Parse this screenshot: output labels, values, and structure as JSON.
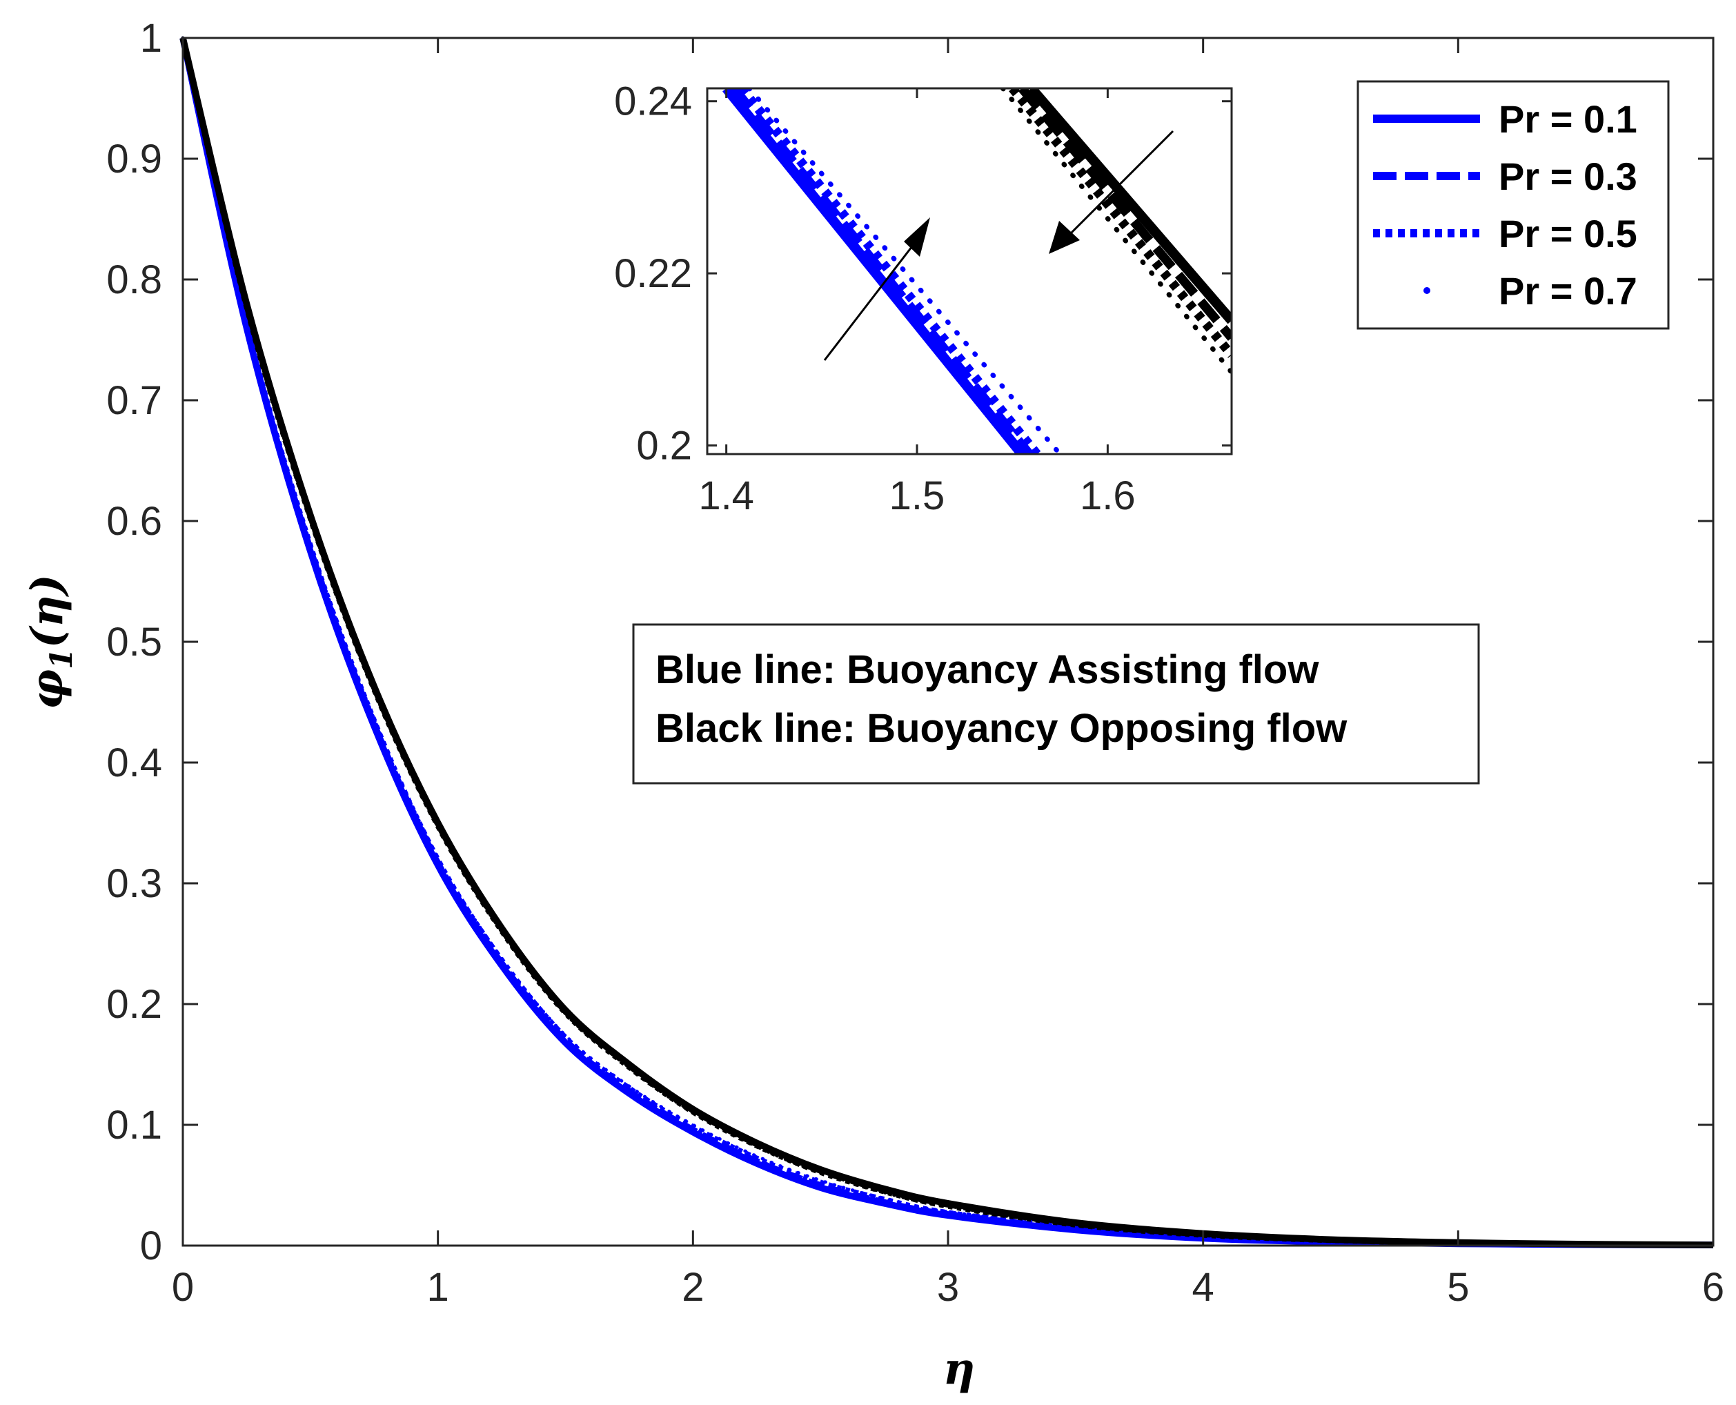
{
  "chart_data": {
    "type": "line",
    "title": "",
    "xlabel": "η",
    "ylabel": "φ1(η)",
    "ylabel_main": "φ",
    "ylabel_sub": "1",
    "ylabel_arg": "(η)",
    "xlim": [
      0,
      6
    ],
    "ylim": [
      0,
      1
    ],
    "xticks": [
      "0",
      "1",
      "2",
      "3",
      "4",
      "5",
      "6"
    ],
    "yticks": [
      "0",
      "0.1",
      "0.2",
      "0.3",
      "0.4",
      "0.5",
      "0.6",
      "0.7",
      "0.8",
      "0.9",
      "1"
    ],
    "grid": false,
    "legend_position": "top-right",
    "legend": [
      {
        "label": "Pr = 0.1",
        "style": "solid"
      },
      {
        "label": "Pr = 0.3",
        "style": "dashed"
      },
      {
        "label": "Pr = 0.5",
        "style": "dotted"
      },
      {
        "label": "Pr = 0.7",
        "style": "points"
      }
    ],
    "annotation": {
      "line1": "Blue line: Buoyancy Assisting flow",
      "line2": "Black line: Buoyancy Opposing flow"
    },
    "colors": {
      "assisting": "#0000ff",
      "opposing": "#000000"
    },
    "x": [
      0,
      0.25,
      0.5,
      0.75,
      1,
      1.25,
      1.5,
      1.75,
      2,
      2.25,
      2.5,
      2.75,
      3,
      3.5,
      4,
      4.5,
      5,
      5.5,
      6
    ],
    "series": [
      {
        "flow": "assisting",
        "style": "solid",
        "values": [
          1,
          0.76,
          0.575,
          0.43,
          0.315,
          0.232,
          0.168,
          0.126,
          0.094,
          0.068,
          0.048,
          0.035,
          0.025,
          0.013,
          0.006,
          0.003,
          0.0015,
          0.0008,
          0.0005
        ]
      },
      {
        "flow": "assisting",
        "style": "dashed",
        "values": [
          1,
          0.761,
          0.577,
          0.432,
          0.317,
          0.234,
          0.17,
          0.128,
          0.096,
          0.07,
          0.05,
          0.036,
          0.026,
          0.014,
          0.0065,
          0.0032,
          0.0016,
          0.0009,
          0.0005
        ]
      },
      {
        "flow": "assisting",
        "style": "dotted",
        "values": [
          1,
          0.762,
          0.579,
          0.434,
          0.319,
          0.236,
          0.172,
          0.13,
          0.098,
          0.072,
          0.052,
          0.038,
          0.027,
          0.015,
          0.007,
          0.0035,
          0.0017,
          0.0009,
          0.0005
        ]
      },
      {
        "flow": "assisting",
        "style": "points",
        "values": [
          1,
          0.763,
          0.581,
          0.436,
          0.321,
          0.238,
          0.174,
          0.132,
          0.1,
          0.074,
          0.054,
          0.039,
          0.028,
          0.016,
          0.0075,
          0.0037,
          0.0018,
          0.001,
          0.0005
        ]
      },
      {
        "flow": "opposing",
        "style": "solid",
        "values": [
          1,
          0.78,
          0.605,
          0.463,
          0.35,
          0.263,
          0.195,
          0.15,
          0.113,
          0.085,
          0.063,
          0.047,
          0.035,
          0.019,
          0.01,
          0.005,
          0.0025,
          0.0012,
          0.0006
        ]
      },
      {
        "flow": "opposing",
        "style": "dashed",
        "values": [
          1,
          0.779,
          0.604,
          0.462,
          0.349,
          0.262,
          0.194,
          0.149,
          0.112,
          0.084,
          0.062,
          0.046,
          0.034,
          0.018,
          0.0095,
          0.0048,
          0.0024,
          0.0012,
          0.0006
        ]
      },
      {
        "flow": "opposing",
        "style": "dotted",
        "values": [
          1,
          0.778,
          0.603,
          0.461,
          0.348,
          0.261,
          0.193,
          0.148,
          0.111,
          0.083,
          0.061,
          0.045,
          0.033,
          0.0175,
          0.009,
          0.0046,
          0.0023,
          0.0011,
          0.0006
        ]
      },
      {
        "flow": "opposing",
        "style": "points",
        "values": [
          1,
          0.777,
          0.602,
          0.46,
          0.347,
          0.26,
          0.192,
          0.147,
          0.11,
          0.082,
          0.06,
          0.044,
          0.032,
          0.017,
          0.0088,
          0.0045,
          0.0022,
          0.0011,
          0.0006
        ]
      }
    ],
    "inset": {
      "xlim": [
        1.39,
        1.665
      ],
      "ylim": [
        0.199,
        0.2415
      ],
      "xticks": [
        "1.4",
        "1.5",
        "1.6"
      ],
      "yticks": [
        "0.2",
        "0.22",
        "0.24"
      ],
      "series": [
        {
          "flow": "assisting",
          "style": "solid",
          "x": [
            1.4,
            1.555
          ],
          "y": [
            0.2415,
            0.199
          ]
        },
        {
          "flow": "assisting",
          "style": "dashed",
          "x": [
            1.404,
            1.559
          ],
          "y": [
            0.2415,
            0.199
          ]
        },
        {
          "flow": "assisting",
          "style": "dotted",
          "x": [
            1.408,
            1.563
          ],
          "y": [
            0.2415,
            0.199
          ]
        },
        {
          "flow": "assisting",
          "style": "points",
          "x": [
            1.412,
            1.575
          ],
          "y": [
            0.2415,
            0.199
          ]
        },
        {
          "flow": "opposing",
          "style": "solid",
          "x": [
            1.56,
            1.665
          ],
          "y": [
            0.2415,
            0.2145
          ]
        },
        {
          "flow": "opposing",
          "style": "dashed",
          "x": [
            1.555,
            1.665
          ],
          "y": [
            0.2415,
            0.2125
          ]
        },
        {
          "flow": "opposing",
          "style": "dotted",
          "x": [
            1.55,
            1.665
          ],
          "y": [
            0.2415,
            0.2105
          ]
        },
        {
          "flow": "opposing",
          "style": "points",
          "x": [
            1.545,
            1.665
          ],
          "y": [
            0.2415,
            0.2085
          ]
        }
      ]
    }
  }
}
